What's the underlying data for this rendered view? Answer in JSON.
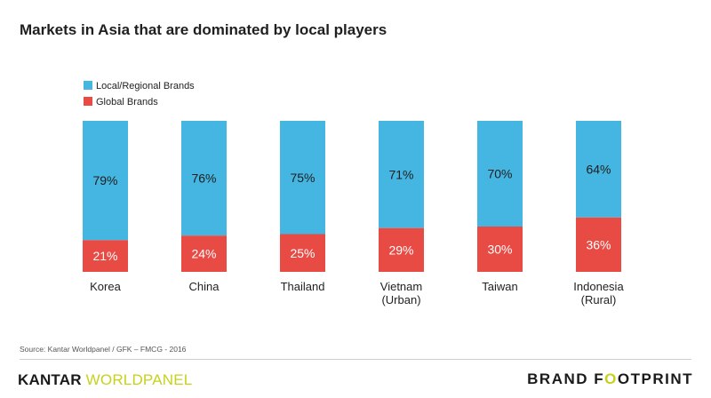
{
  "colors": {
    "local": "#45b5e1",
    "global": "#e84a44",
    "brand_accent": "#c7d11c"
  },
  "chart_data": {
    "type": "bar",
    "stacked": true,
    "title": "Markets in Asia that are dominated by local players",
    "categories": [
      [
        "Korea"
      ],
      [
        "China"
      ],
      [
        "Thailand"
      ],
      [
        "Vietnam",
        "(Urban)"
      ],
      [
        "Taiwan"
      ],
      [
        "Indonesia",
        "(Rural)"
      ]
    ],
    "series": [
      {
        "name": "Global Brands",
        "values": [
          21,
          24,
          25,
          29,
          30,
          36
        ],
        "labels": [
          "21%",
          "24%",
          "25%",
          "29%",
          "30%",
          "36%"
        ]
      },
      {
        "name": "Local/Regional Brands",
        "values": [
          79,
          76,
          75,
          71,
          70,
          64
        ],
        "labels": [
          "79%",
          "76%",
          "75%",
          "71%",
          "70%",
          "64%"
        ]
      }
    ],
    "ylim": [
      0,
      100
    ],
    "grid": false,
    "legend": "top-left"
  },
  "footer": {
    "source": "Source: Kantar Worldpanel / GFK – FMCG - 2016",
    "logo_left": {
      "part1": "KANTAR ",
      "part2a": "W",
      "part2b": "O",
      "part2c": "RLDPANEL"
    },
    "logo_right": {
      "part1": "BRAND F",
      "part2": "O",
      "part3": "OTPRINT"
    }
  }
}
